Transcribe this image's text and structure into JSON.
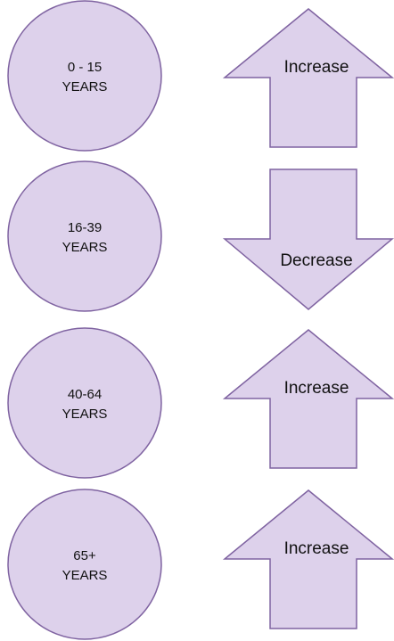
{
  "rows": [
    {
      "age": [
        "0 - 15",
        "YEARS"
      ],
      "trend": "Increase",
      "direction": "up"
    },
    {
      "age": [
        "16-39",
        "YEARS"
      ],
      "trend": "Decrease",
      "direction": "down"
    },
    {
      "age": [
        "40-64",
        "YEARS"
      ],
      "trend": "Increase",
      "direction": "up"
    },
    {
      "age": [
        "65+",
        "YEARS"
      ],
      "trend": "Increase",
      "direction": "up"
    }
  ]
}
